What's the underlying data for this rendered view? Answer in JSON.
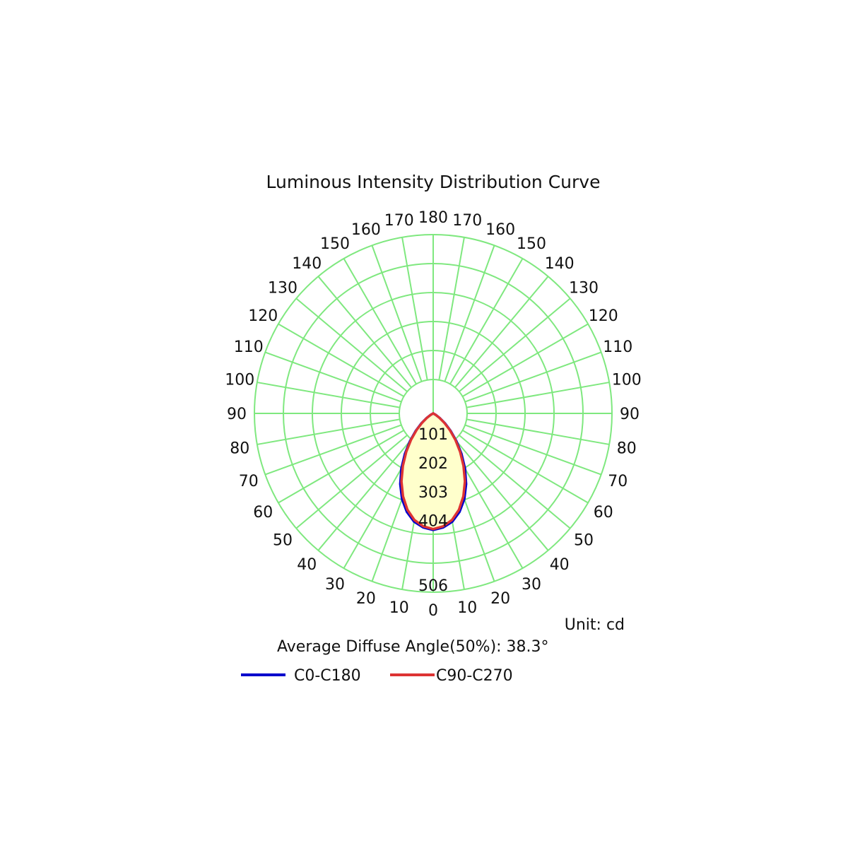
{
  "chart_data": {
    "type": "polar",
    "title": "Luminous Intensity Distribution Curve",
    "unit_label": "Unit: cd",
    "diffuse_angle_label": "Average Diffuse Angle(50%): 38.3°",
    "grid": true,
    "angle_step_deg": 10,
    "angle_labels_left": [
      "160",
      "170",
      "150",
      "140",
      "130",
      "120",
      "110",
      "100",
      "90",
      "80",
      "70",
      "60",
      "50",
      "40",
      "30",
      "20",
      "10"
    ],
    "angle_labels_right": [
      "180",
      "170",
      "160",
      "150",
      "140",
      "130",
      "120",
      "110",
      "100",
      "90",
      "80",
      "70",
      "60",
      "50",
      "40",
      "30",
      "20",
      "10"
    ],
    "bottom_angle_label": "0",
    "radial_max": 506,
    "radial_ticks": [
      101,
      202,
      303,
      404,
      506
    ],
    "radial_tick_labels": [
      "101",
      "202",
      "303",
      "404",
      "506"
    ],
    "series": [
      {
        "name": "C0-C180",
        "color": "#0000cc",
        "angles": [
          0,
          5,
          10,
          15,
          20,
          25,
          30,
          35,
          40,
          45,
          50,
          55,
          60,
          90
        ],
        "intensity": [
          407,
          400,
          384,
          356,
          318,
          272,
          222,
          172,
          126,
          86,
          54,
          28,
          10,
          0
        ]
      },
      {
        "name": "C90-C270",
        "color": "#dd3333",
        "angles": [
          0,
          5,
          10,
          15,
          20,
          25,
          30,
          35,
          40,
          45,
          50,
          55,
          60,
          90
        ],
        "intensity": [
          404,
          396,
          378,
          348,
          308,
          262,
          212,
          164,
          120,
          82,
          50,
          26,
          9,
          0
        ]
      }
    ],
    "fill_color": "#ffffcc",
    "grid_color": "#7fe87f"
  }
}
